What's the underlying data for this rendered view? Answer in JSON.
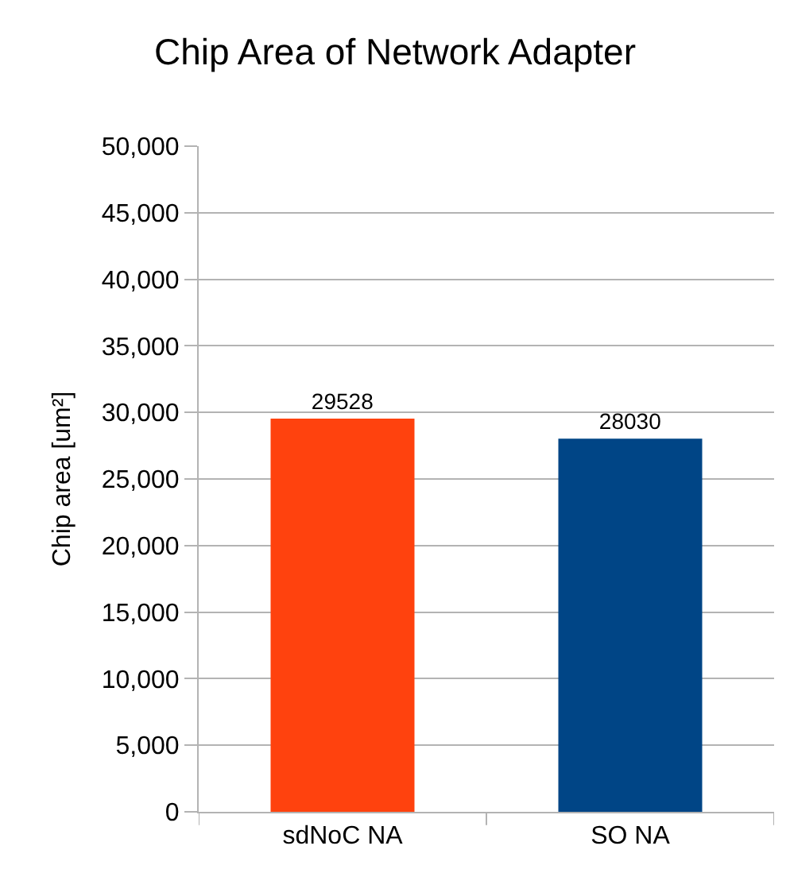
{
  "chart_data": {
    "type": "bar",
    "title": "Chip Area of Network Adapter",
    "ylabel": "Chip area [um²]",
    "categories": [
      "sdNoC NA",
      "SO NA"
    ],
    "values": [
      29528,
      28030
    ],
    "colors": [
      "#ff420e",
      "#004586"
    ],
    "data_labels": true,
    "ylim": [
      0,
      50000
    ],
    "yticks": [
      0,
      {
        "value": 5000,
        "label": "5,000"
      },
      {
        "value": 10000,
        "label": "10,000"
      },
      {
        "value": 15000,
        "label": "15,000"
      },
      {
        "value": 20000,
        "label": "20,000"
      },
      {
        "value": 25000,
        "label": "25,000"
      },
      {
        "value": 30000,
        "label": "30,000"
      },
      {
        "value": 35000,
        "label": "35,000"
      },
      {
        "value": 40000,
        "label": "40,000"
      },
      {
        "value": 45000,
        "label": "45,000"
      },
      {
        "value": 50000,
        "label": "50,000"
      }
    ],
    "grid": "y"
  }
}
